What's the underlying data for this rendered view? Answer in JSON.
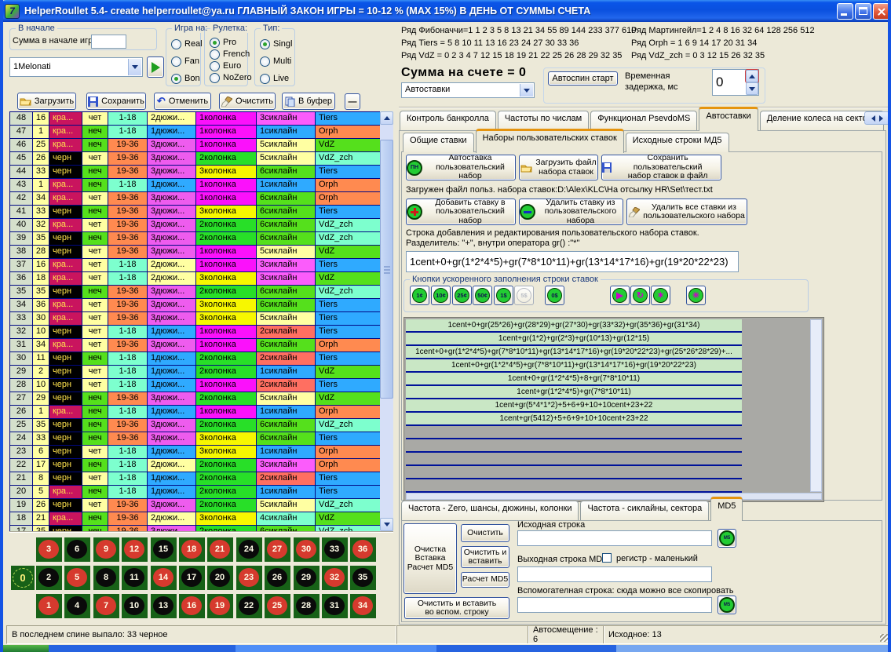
{
  "window": {
    "title": "HelperRoullet 5.4- create helperroullet@ya.ru ГЛАВНЫЙ ЗАКОН ИГРЫ = 10-12 % (MAX 15%) В ДЕНЬ ОТ СУММЫ СЧЕТА"
  },
  "colors": {
    "index_bg": "#D5E0CC",
    "number_bg": "#FFFFA2",
    "red_circle": "#D63A2E",
    "black_circle": "#0A0A0A",
    "board_green": "#176117",
    "active_tab_top": "#E5940F",
    "cell_map": {
      "кра...": {
        "bg": "#C9145E",
        "fg": "#FFE34D"
      },
      "черн": {
        "bg": "#000000",
        "fg": "#FFE34D"
      },
      "чет": {
        "bg": "#FFFFA2"
      },
      "неч": {
        "bg": "#55E01C"
      },
      "1-18": {
        "bg": "#7DFFCE"
      },
      "19-36": {
        "bg": "#FF8A50"
      },
      "1дюжи...": {
        "bg": "#2FAAFF"
      },
      "2дюжи...": {
        "bg": "#FFFFA2"
      },
      "3дюжи...": {
        "bg": "#EE5CEE"
      },
      "1колонка": {
        "bg": "#FB11FB"
      },
      "2колонка": {
        "bg": "#28DF28"
      },
      "3колонка": {
        "bg": "#F7F700"
      },
      "1сиклайн": {
        "bg": "#2FAAFF"
      },
      "2сиклайн": {
        "bg": "#FF6F61"
      },
      "3сиклайн": {
        "bg": "#FB5CFB"
      },
      "4сиклайн": {
        "bg": "#7DFFCE"
      },
      "5сиклайн": {
        "bg": "#FFFFA2"
      },
      "6сиклайн": {
        "bg": "#55E01C"
      },
      "Tiers": {
        "bg": "#2FAAFF"
      },
      "Orph": {
        "bg": "#FF8A50"
      },
      "VdZ": {
        "bg": "#55E01C"
      },
      "VdZ_zch": {
        "bg": "#7DFFCE"
      }
    }
  },
  "left": {
    "start_group": {
      "label": "В начале",
      "field_label": "Сумма в начале игры",
      "field_value": ""
    },
    "game_on": {
      "label": "Игра на:",
      "options": [
        "Real",
        "Fan",
        "Bon"
      ],
      "selected": "Bon"
    },
    "roulette": {
      "label": "Рулетка:",
      "options": [
        "Pro",
        "French",
        "Euro",
        "NoZero"
      ],
      "selected": "Pro"
    },
    "type": {
      "label": "Тип:",
      "options": [
        "Singl",
        "Multi",
        "Live"
      ],
      "selected": "Singl"
    },
    "preset_combo": {
      "value": "1Melonati"
    },
    "toolbar": [
      {
        "label": "Загрузить",
        "icon": "open-folder-icon"
      },
      {
        "label": "Сохранить",
        "icon": "floppy-icon"
      },
      {
        "label": "Отменить",
        "icon": "undo-icon"
      },
      {
        "label": "Очистить",
        "icon": "brush-icon"
      },
      {
        "label": "В буфер",
        "icon": "copy-icon"
      },
      {
        "label": "—",
        "icon": "collapse-icon"
      }
    ],
    "spin_table": {
      "rows": [
        [
          48,
          16,
          "кра...",
          "чет",
          "1-18",
          "2дюжи...",
          "1колонка",
          "3сиклайн",
          "Tiers"
        ],
        [
          47,
          1,
          "кра...",
          "неч",
          "1-18",
          "1дюжи...",
          "1колонка",
          "1сиклайн",
          "Orph"
        ],
        [
          46,
          25,
          "кра...",
          "неч",
          "19-36",
          "3дюжи...",
          "1колонка",
          "5сиклайн",
          "VdZ"
        ],
        [
          45,
          26,
          "черн",
          "чет",
          "19-36",
          "3дюжи...",
          "2колонка",
          "5сиклайн",
          "VdZ_zch"
        ],
        [
          44,
          33,
          "черн",
          "неч",
          "19-36",
          "3дюжи...",
          "3колонка",
          "6сиклайн",
          "Tiers"
        ],
        [
          43,
          1,
          "кра...",
          "неч",
          "1-18",
          "1дюжи...",
          "1колонка",
          "1сиклайн",
          "Orph"
        ],
        [
          42,
          34,
          "кра...",
          "чет",
          "19-36",
          "3дюжи...",
          "1колонка",
          "6сиклайн",
          "Orph"
        ],
        [
          41,
          33,
          "черн",
          "неч",
          "19-36",
          "3дюжи...",
          "3колонка",
          "6сиклайн",
          "Tiers"
        ],
        [
          40,
          32,
          "кра...",
          "чет",
          "19-36",
          "3дюжи...",
          "2колонка",
          "6сиклайн",
          "VdZ_zch"
        ],
        [
          39,
          35,
          "черн",
          "неч",
          "19-36",
          "3дюжи...",
          "2колонка",
          "6сиклайн",
          "VdZ_zch"
        ],
        [
          38,
          28,
          "черн",
          "чет",
          "19-36",
          "3дюжи...",
          "1колонка",
          "5сиклайн",
          "VdZ"
        ],
        [
          37,
          16,
          "кра...",
          "чет",
          "1-18",
          "2дюжи...",
          "1колонка",
          "3сиклайн",
          "Tiers"
        ],
        [
          36,
          18,
          "кра...",
          "чет",
          "1-18",
          "2дюжи...",
          "3колонка",
          "3сиклайн",
          "VdZ"
        ],
        [
          35,
          35,
          "черн",
          "неч",
          "19-36",
          "3дюжи...",
          "2колонка",
          "6сиклайн",
          "VdZ_zch"
        ],
        [
          34,
          36,
          "кра...",
          "чет",
          "19-36",
          "3дюжи...",
          "3колонка",
          "6сиклайн",
          "Tiers"
        ],
        [
          33,
          30,
          "кра...",
          "чет",
          "19-36",
          "3дюжи...",
          "3колонка",
          "5сиклайн",
          "Tiers"
        ],
        [
          32,
          10,
          "черн",
          "чет",
          "1-18",
          "1дюжи...",
          "1колонка",
          "2сиклайн",
          "Tiers"
        ],
        [
          31,
          34,
          "кра...",
          "чет",
          "19-36",
          "3дюжи...",
          "1колонка",
          "6сиклайн",
          "Orph"
        ],
        [
          30,
          11,
          "черн",
          "неч",
          "1-18",
          "1дюжи...",
          "2колонка",
          "2сиклайн",
          "Tiers"
        ],
        [
          29,
          2,
          "черн",
          "чет",
          "1-18",
          "1дюжи...",
          "2колонка",
          "1сиклайн",
          "VdZ"
        ],
        [
          28,
          10,
          "черн",
          "чет",
          "1-18",
          "1дюжи...",
          "1колонка",
          "2сиклайн",
          "Tiers"
        ],
        [
          27,
          29,
          "черн",
          "неч",
          "19-36",
          "3дюжи...",
          "2колонка",
          "5сиклайн",
          "VdZ"
        ],
        [
          26,
          1,
          "кра...",
          "неч",
          "1-18",
          "1дюжи...",
          "1колонка",
          "1сиклайн",
          "Orph"
        ],
        [
          25,
          35,
          "черн",
          "неч",
          "19-36",
          "3дюжи...",
          "2колонка",
          "6сиклайн",
          "VdZ_zch"
        ],
        [
          24,
          33,
          "черн",
          "неч",
          "19-36",
          "3дюжи...",
          "3колонка",
          "6сиклайн",
          "Tiers"
        ],
        [
          23,
          6,
          "черн",
          "чет",
          "1-18",
          "1дюжи...",
          "3колонка",
          "1сиклайн",
          "Orph"
        ],
        [
          22,
          17,
          "черн",
          "неч",
          "1-18",
          "2дюжи...",
          "2колонка",
          "3сиклайн",
          "Orph"
        ],
        [
          21,
          8,
          "черн",
          "чет",
          "1-18",
          "1дюжи...",
          "2колонка",
          "2сиклайн",
          "Tiers"
        ],
        [
          20,
          5,
          "кра...",
          "неч",
          "1-18",
          "1дюжи...",
          "2колонка",
          "1сиклайн",
          "Tiers"
        ],
        [
          19,
          26,
          "черн",
          "чет",
          "19-36",
          "3дюжи...",
          "2колонка",
          "5сиклайн",
          "VdZ_zch"
        ],
        [
          18,
          21,
          "кра...",
          "неч",
          "19-36",
          "2дюжи...",
          "3колонка",
          "4сиклайн",
          "VdZ"
        ]
      ],
      "partial_row": [
        17,
        35,
        "черн",
        "неч",
        "19-36",
        "3дюжи...",
        "2колонка",
        "6сиклайн",
        "VdZ_zch"
      ]
    },
    "board": {
      "zero": "0",
      "rows": [
        [
          3,
          6,
          9,
          12,
          15,
          18,
          21,
          24,
          27,
          30,
          33,
          36
        ],
        [
          2,
          5,
          8,
          11,
          14,
          17,
          20,
          23,
          26,
          29,
          32,
          35
        ],
        [
          1,
          4,
          7,
          10,
          13,
          16,
          19,
          22,
          25,
          28,
          31,
          34
        ]
      ],
      "red_numbers": [
        1,
        3,
        5,
        7,
        9,
        12,
        14,
        16,
        18,
        19,
        21,
        23,
        25,
        27,
        30,
        32,
        34,
        36
      ]
    },
    "status": "В последнем спине выпало: 33 черное"
  },
  "right": {
    "series_left": [
      "Ряд Фибоначчи=1 1 2 3 5 8 13 21 34 55 89 144 233 377 610",
      "Ряд Tiers = 5 8 10 11 13 16 23 24 27 30 33 36",
      "Ряд VdZ = 0 2 3 4 7 12 15 18 19 21 22 25 26 28 29 32 35"
    ],
    "series_right": [
      "Ряд Мартингейл=1 2 4 8 16 32 64 128 256 512",
      "Ряд Orph = 1 6 9 14 17 20 31 34",
      "Ряд VdZ_zch = 0 3 12 15 26 32 35"
    ],
    "sum_label": "Сумма на счете = 0",
    "mode_combo": "Автоставки",
    "autospin_button": "Автоспин старт",
    "delay_label": "Временная задержка, мс",
    "delay_value": "0",
    "tabs": [
      "Контроль банкролла",
      "Частоты по числам",
      "Функционал PsevdoMS",
      "Автоставки",
      "Деление колеса на сектора"
    ],
    "active_tab": "Автоставки",
    "inner_tabs": [
      "Общие ставки",
      "Наборы пользовательских ставок",
      "Исходные строки МД5"
    ],
    "active_inner_tab": "Наборы пользовательских ставок",
    "set_buttons": [
      {
        "label": "Автоставка\nпользовательский набор",
        "icon": "pn-chip-icon",
        "icon_text": "ПН"
      },
      {
        "label": "Загрузить файл\nнабора ставок",
        "icon": "open-folder-icon"
      },
      {
        "label": "Сохранить пользовательский\nнабор ставок в файл",
        "icon": "floppy-icon"
      },
      {
        "label": "Добавить ставку в\nпользовательский набор",
        "icon": "add-chip-icon"
      },
      {
        "label": "Удалить ставку из\nпользовательского набора",
        "icon": "remove-chip-icon"
      },
      {
        "label": "Удалить все ставки из\nпользовательского набора",
        "icon": "brush-icon"
      }
    ],
    "loaded_file_line": "Загружен файл польз. набора ставок:D:\\Alex\\KLC\\На отсылку HR\\Set\\тест.txt",
    "edit_caption_line1": "Строка добавления и редактирования пользовательского набора ставок.",
    "edit_caption_line2": "Разделитель: \"+\", внутри оператора gr() :\"*\"",
    "bet_input": "1cent+0+gr(1*2*4*5)+gr(7*8*10*11)+gr(13*14*17*16)+gr(19*20*22*23)",
    "quick_group_label": "Кнопки ускоренного заполнения строки ставок",
    "quick_buttons": [
      {
        "label": "1¢"
      },
      {
        "label": "10¢"
      },
      {
        "label": "25¢"
      },
      {
        "label": "50¢"
      },
      {
        "label": "1$"
      },
      {
        "label": "5$",
        "disabled": true
      },
      {
        "label": "0$"
      },
      {
        "name": "play",
        "glyph": "▶"
      },
      {
        "name": "repeat",
        "glyph": "↻"
      },
      {
        "name": "spray",
        "glyph": "✶"
      },
      {
        "name": "pattern",
        "glyph": "✳"
      }
    ],
    "bet_list": [
      "1cent+0+gr(25*26)+gr(28*29)+gr(27*30)+gr(33*32)+gr(35*36)+gr(31*34)",
      "1cent+gr(1*2)+gr(2*3)+gr(10*13)+gr(12*15)",
      "1cent+0+gr(1*2*4*5)+gr(7*8*10*11)+gr(13*14*17*16)+gr(19*20*22*23)+gr(25*26*28*29)+...",
      "1cent+0+gr(1*2*4*5)+gr(7*8*10*11)+gr(13*14*17*16)+gr(19*20*22*23)",
      "1cent+0+gr(1*2*4*5)+8+gr(7*8*10*11)",
      "1cent+gr(1*2*4*5)+gr(7*8*10*11)",
      "1cent+gr(5*4*1*2)+5+6+9+10+10cent+23+22",
      "1cent+gr(5412)+5+6+9+10+10cent+23+22"
    ],
    "empty_row_count": 5,
    "bottom_tabs": [
      "Частота - Zero, шансы, дюжины, колонки",
      "Частота - сиклайны, сектора",
      "MD5"
    ],
    "active_bottom_tab": "MD5",
    "md5": {
      "big_button": "Очистка\nВставка\nРасчет MD5",
      "clear": "Очистить",
      "clear_paste": "Очистить и\nвставить",
      "calc": "Расчет MD5",
      "clear_paste_aux": "Очистить и  вставить\nво вспом. строку",
      "source_label": "Исходная строка",
      "source_value": "",
      "out_label": "Выходная строка MD5",
      "case_checkbox": "регистр  - маленький",
      "out_value": "",
      "aux_label": "Вспомогателная строка: сюда можно все скопировать",
      "aux_value": ""
    }
  },
  "statusbar": {
    "auto_offset": "Автосмещение : 6",
    "source": "Исходное: 13"
  }
}
